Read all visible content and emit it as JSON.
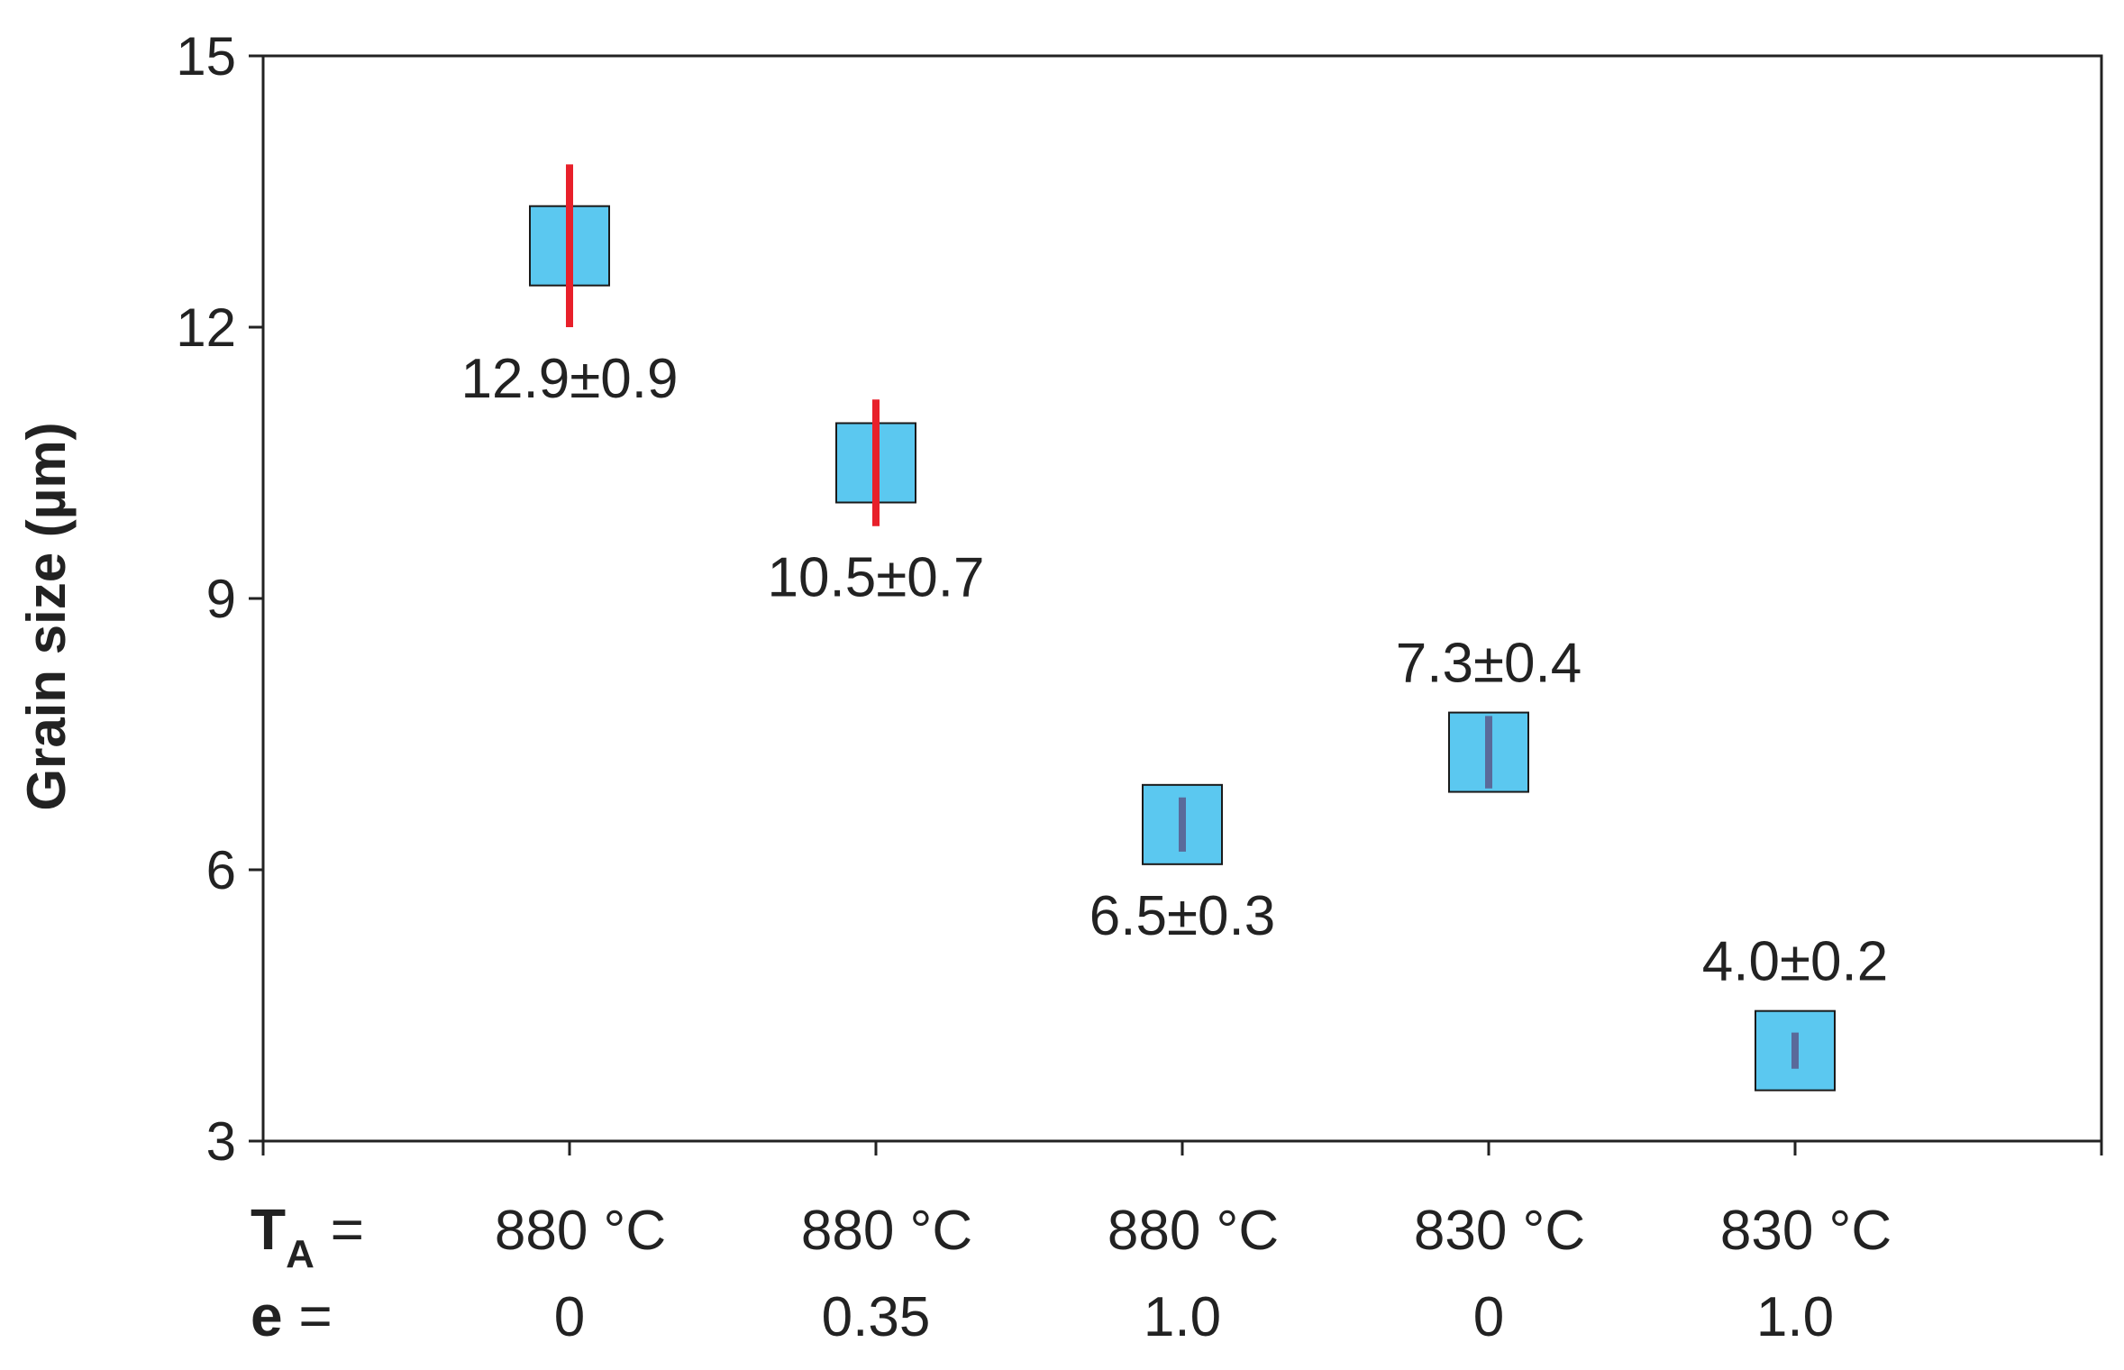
{
  "chart_data": {
    "type": "scatter",
    "title": "",
    "ylabel": "Grain size (µm)",
    "xlabel": "",
    "ylim": [
      3,
      15
    ],
    "yticks": [
      3,
      6,
      9,
      12,
      15
    ],
    "grid": false,
    "row_labels": {
      "ta_main": "T",
      "ta_sub": "A",
      "ta_eq": " =",
      "e": "e",
      "e_eq": " ="
    },
    "points": [
      {
        "ta": "880 °C",
        "e": "0",
        "value": 12.9,
        "error": 0.9,
        "label": "12.9±0.9",
        "label_pos": "below",
        "bar_color": "#e8202a"
      },
      {
        "ta": "880 °C",
        "e": "0.35",
        "value": 10.5,
        "error": 0.7,
        "label": "10.5±0.7",
        "label_pos": "below",
        "bar_color": "#e8202a"
      },
      {
        "ta": "880 °C",
        "e": "1.0",
        "value": 6.5,
        "error": 0.3,
        "label": "6.5±0.3",
        "label_pos": "below",
        "bar_color": "#5a6a9a"
      },
      {
        "ta": "830 °C",
        "e": "0",
        "value": 7.3,
        "error": 0.4,
        "label": "7.3±0.4",
        "label_pos": "above",
        "bar_color": "#5a6a9a"
      },
      {
        "ta": "830 °C",
        "e": "1.0",
        "value": 4.0,
        "error": 0.2,
        "label": "4.0±0.2",
        "label_pos": "above",
        "bar_color": "#5a6a9a"
      }
    ],
    "colors": {
      "marker_fill": "#5bc8f0",
      "marker_stroke": "#1a1a1a",
      "axis": "#222222"
    }
  }
}
